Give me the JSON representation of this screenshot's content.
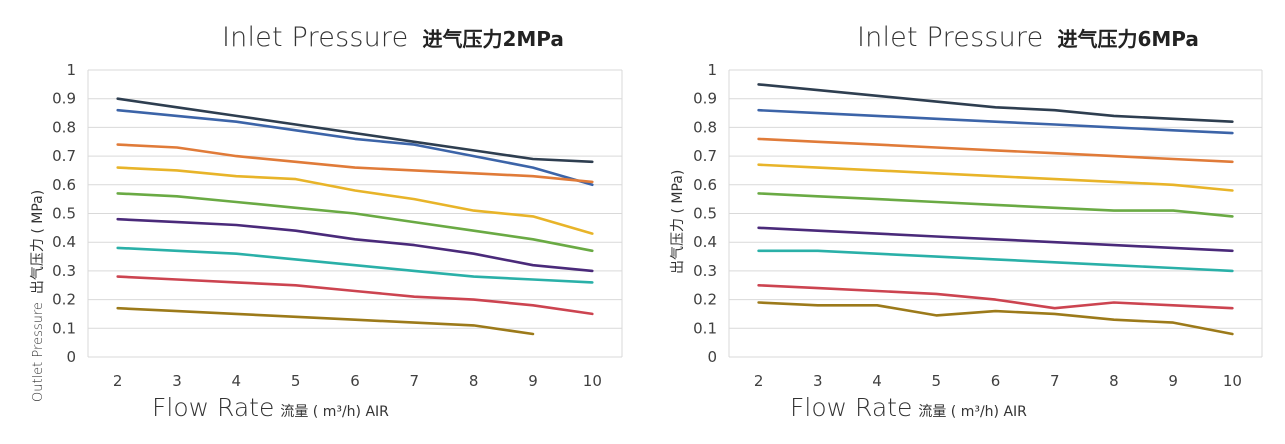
{
  "chart_data": [
    {
      "type": "line",
      "title": "Inlet Pressure",
      "title_cn": "进气压力2MPa",
      "xlabel": "Flow Rate",
      "xlabel_cn": "流量 ( m³/h)  AIR",
      "ylabel": "Outlet Pressure",
      "ylabel_cn": "出气压力 ( MPa)",
      "x": [
        2,
        3,
        4,
        5,
        6,
        7,
        8,
        9,
        10
      ],
      "xlim": [
        1.5,
        10.5
      ],
      "ylim": [
        0,
        1
      ],
      "yticks": [
        "0",
        "0.1",
        "0.2",
        "0.3",
        "0.4",
        "0.5",
        "0.6",
        "0.7",
        "0.8",
        "0.9",
        "1"
      ],
      "grid": true,
      "series": [
        {
          "color": "#2e3e50",
          "values": [
            0.9,
            0.87,
            0.84,
            0.81,
            0.78,
            0.75,
            0.72,
            0.69,
            0.68
          ]
        },
        {
          "color": "#3c64a8",
          "values": [
            0.86,
            0.84,
            0.82,
            0.79,
            0.76,
            0.74,
            0.7,
            0.66,
            0.6
          ]
        },
        {
          "color": "#e07b39",
          "values": [
            0.74,
            0.73,
            0.7,
            0.68,
            0.66,
            0.65,
            0.64,
            0.63,
            0.61
          ]
        },
        {
          "color": "#e8b429",
          "values": [
            0.66,
            0.65,
            0.63,
            0.62,
            0.58,
            0.55,
            0.51,
            0.49,
            0.43
          ]
        },
        {
          "color": "#6aaa44",
          "values": [
            0.57,
            0.56,
            0.54,
            0.52,
            0.5,
            0.47,
            0.44,
            0.41,
            0.37
          ]
        },
        {
          "color": "#4a2a7a",
          "values": [
            0.48,
            0.47,
            0.46,
            0.44,
            0.41,
            0.39,
            0.36,
            0.32,
            0.3
          ]
        },
        {
          "color": "#2ab0a8",
          "values": [
            0.38,
            0.37,
            0.36,
            0.34,
            0.32,
            0.3,
            0.28,
            0.27,
            0.26
          ]
        },
        {
          "color": "#cc4450",
          "values": [
            0.28,
            0.27,
            0.26,
            0.25,
            0.23,
            0.21,
            0.2,
            0.18,
            0.15
          ]
        },
        {
          "color": "#9c7a1a",
          "values": [
            0.17,
            0.16,
            0.15,
            0.14,
            0.13,
            0.12,
            0.11,
            0.08,
            null
          ]
        }
      ]
    },
    {
      "type": "line",
      "title": "Inlet Pressure",
      "title_cn": "进气压力6MPa",
      "xlabel": "Flow Rate",
      "xlabel_cn": "流量 ( m³/h)  AIR",
      "ylabel": "",
      "ylabel_cn": "出气压力 ( MPa)",
      "x": [
        2,
        3,
        4,
        5,
        6,
        7,
        8,
        9,
        10
      ],
      "xlim": [
        1.5,
        10.5
      ],
      "ylim": [
        0,
        1
      ],
      "yticks": [
        "0",
        "0.1",
        "0.2",
        "0.3",
        "0.4",
        "0.5",
        "0.6",
        "0.7",
        "0.8",
        "0.9",
        "1"
      ],
      "grid": true,
      "series": [
        {
          "color": "#2e3e50",
          "values": [
            0.95,
            0.93,
            0.91,
            0.89,
            0.87,
            0.86,
            0.84,
            0.83,
            0.82
          ]
        },
        {
          "color": "#3c64a8",
          "values": [
            0.86,
            0.85,
            0.84,
            0.83,
            0.82,
            0.81,
            0.8,
            0.79,
            0.78
          ]
        },
        {
          "color": "#e07b39",
          "values": [
            0.76,
            0.75,
            0.74,
            0.73,
            0.72,
            0.71,
            0.7,
            0.69,
            0.68
          ]
        },
        {
          "color": "#e8b429",
          "values": [
            0.67,
            0.66,
            0.65,
            0.64,
            0.63,
            0.62,
            0.61,
            0.6,
            0.58
          ]
        },
        {
          "color": "#6aaa44",
          "values": [
            0.57,
            0.56,
            0.55,
            0.54,
            0.53,
            0.52,
            0.51,
            0.51,
            0.49
          ]
        },
        {
          "color": "#4a2a7a",
          "values": [
            0.45,
            0.44,
            0.43,
            0.42,
            0.41,
            0.4,
            0.39,
            0.38,
            0.37
          ]
        },
        {
          "color": "#2ab0a8",
          "values": [
            0.37,
            0.37,
            0.36,
            0.35,
            0.34,
            0.33,
            0.32,
            0.31,
            0.3
          ]
        },
        {
          "color": "#cc4450",
          "values": [
            0.25,
            0.24,
            0.23,
            0.22,
            0.2,
            0.17,
            0.19,
            0.18,
            0.17
          ]
        },
        {
          "color": "#9c7a1a",
          "values": [
            0.19,
            0.18,
            0.18,
            0.145,
            0.16,
            0.15,
            0.13,
            0.12,
            0.08
          ]
        }
      ]
    }
  ]
}
